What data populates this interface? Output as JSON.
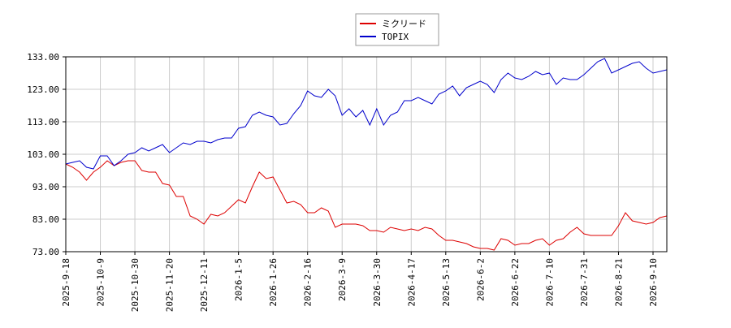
{
  "chart_data": {
    "type": "line",
    "categories": [
      "2025-9-18",
      null,
      null,
      null,
      null,
      "2025-10-9",
      null,
      null,
      null,
      null,
      "2025-10-30",
      null,
      null,
      null,
      null,
      "2025-11-20",
      null,
      null,
      null,
      null,
      "2025-12-11",
      null,
      null,
      null,
      null,
      "2026-1-5",
      null,
      null,
      null,
      null,
      "2026-1-26",
      null,
      null,
      null,
      null,
      "2026-2-16",
      null,
      null,
      null,
      null,
      "2026-3-9",
      null,
      null,
      null,
      null,
      "2026-3-30",
      null,
      null,
      null,
      null,
      "2026-4-17",
      null,
      null,
      null,
      null,
      "2026-5-13",
      null,
      null,
      null,
      null,
      "2026-6-2",
      null,
      null,
      null,
      null,
      "2026-6-22",
      null,
      null,
      null,
      null,
      "2026-7-10",
      null,
      null,
      null,
      null,
      "2026-7-31",
      null,
      null,
      null,
      null,
      "2026-8-21",
      null,
      null,
      null,
      null,
      "2026-9-10",
      null,
      null
    ],
    "series": [
      {
        "name": "ミクリード",
        "color": "#dd0000",
        "values": [
          100,
          99,
          97.5,
          95,
          97.5,
          99,
          101,
          99.5,
          100.5,
          101,
          101,
          98,
          97.5,
          97.5,
          94,
          93.5,
          90,
          90,
          84,
          83,
          81.5,
          84.5,
          84,
          85,
          87,
          89,
          88,
          93,
          97.5,
          95.5,
          96,
          92,
          88,
          88.5,
          87.5,
          85,
          85,
          86.5,
          85.5,
          80.5,
          81.5,
          81.5,
          81.5,
          81,
          79.5,
          79.5,
          79,
          80.5,
          80,
          79.5,
          80,
          79.5,
          80.5,
          80,
          78,
          76.5,
          76.5,
          76,
          75.5,
          74.5,
          74,
          74,
          73.5,
          77,
          76.5,
          75,
          75.5,
          75.5,
          76.5,
          77,
          75,
          76.5,
          77,
          79,
          80.5,
          78.5,
          78,
          78,
          78,
          78,
          81,
          85,
          82.5,
          82,
          81.5,
          82,
          83.5,
          84
        ]
      },
      {
        "name": "TOPIX",
        "color": "#0000cc",
        "values": [
          100,
          100.5,
          101,
          99,
          98.5,
          102.5,
          102.5,
          99.5,
          101,
          103,
          103.5,
          105,
          104,
          105,
          106,
          103.5,
          105,
          106.5,
          106,
          107,
          107,
          106.5,
          107.5,
          108,
          108,
          111,
          111.5,
          115,
          116,
          115,
          114.5,
          112,
          112.5,
          115.5,
          118,
          122.5,
          121,
          120.5,
          123,
          121,
          115,
          117,
          114.5,
          116.5,
          112,
          117,
          112,
          115,
          116,
          119.5,
          119.5,
          120.5,
          119.5,
          118.5,
          121.5,
          122.5,
          124,
          121,
          123.5,
          124.5,
          125.5,
          124.5,
          122,
          126,
          128,
          126.5,
          126,
          127,
          128.5,
          127.5,
          128,
          124.5,
          126.5,
          126,
          126,
          127.5,
          129.5,
          131.5,
          132.5,
          128,
          129,
          130,
          131,
          131.5,
          129.5,
          128,
          128.5,
          129
        ]
      }
    ],
    "ylim": [
      73,
      133
    ],
    "yticks": [
      {
        "value": 73,
        "label": "73.00"
      },
      {
        "value": 83,
        "label": "83.00"
      },
      {
        "value": 93,
        "label": "93.00"
      },
      {
        "value": 103,
        "label": "103.00"
      },
      {
        "value": 113,
        "label": "113.00"
      },
      {
        "value": 123,
        "label": "123.00"
      },
      {
        "value": 133,
        "label": "133.00"
      }
    ],
    "grid": true
  }
}
